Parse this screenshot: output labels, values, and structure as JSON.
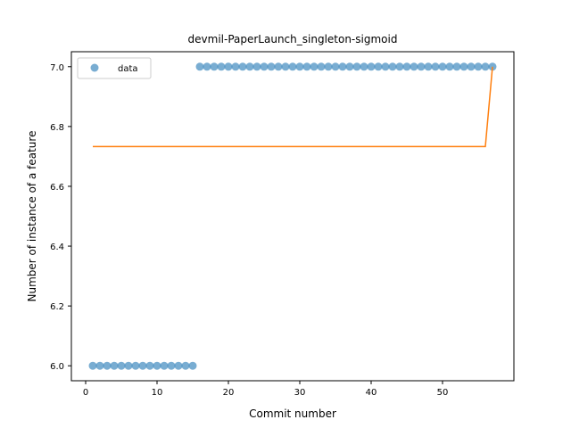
{
  "chart_data": {
    "type": "scatter",
    "title": "devmil-PaperLaunch_singleton-sigmoid",
    "xlabel": "Commit number",
    "ylabel": "Number of instance of a feature",
    "xlim": [
      -2,
      60
    ],
    "ylim": [
      5.95,
      7.05
    ],
    "xticks": [
      0,
      10,
      20,
      30,
      40,
      50
    ],
    "yticks": [
      6.0,
      6.2,
      6.4,
      6.6,
      6.8,
      7.0
    ],
    "ytick_labels": [
      "6.0",
      "6.2",
      "6.4",
      "6.6",
      "6.8",
      "7.0"
    ],
    "legend": {
      "placement": "top-left",
      "entries": [
        "data"
      ]
    },
    "colors": {
      "data": "#1f77b4",
      "fit": "#ff7f0e"
    },
    "series": [
      {
        "name": "data",
        "kind": "scatter",
        "x": [
          1,
          2,
          3,
          4,
          5,
          6,
          7,
          8,
          9,
          10,
          11,
          12,
          13,
          14,
          15,
          16,
          17,
          18,
          19,
          20,
          21,
          22,
          23,
          24,
          25,
          26,
          27,
          28,
          29,
          30,
          31,
          32,
          33,
          34,
          35,
          36,
          37,
          38,
          39,
          40,
          41,
          42,
          43,
          44,
          45,
          46,
          47,
          48,
          49,
          50,
          51,
          52,
          53,
          54,
          55,
          56,
          57
        ],
        "y": [
          6,
          6,
          6,
          6,
          6,
          6,
          6,
          6,
          6,
          6,
          6,
          6,
          6,
          6,
          6,
          7,
          7,
          7,
          7,
          7,
          7,
          7,
          7,
          7,
          7,
          7,
          7,
          7,
          7,
          7,
          7,
          7,
          7,
          7,
          7,
          7,
          7,
          7,
          7,
          7,
          7,
          7,
          7,
          7,
          7,
          7,
          7,
          7,
          7,
          7,
          7,
          7,
          7,
          7,
          7,
          7,
          7
        ]
      },
      {
        "kind": "line",
        "x": [
          1,
          56,
          57
        ],
        "y": [
          6.733,
          6.733,
          7.0
        ]
      }
    ]
  }
}
